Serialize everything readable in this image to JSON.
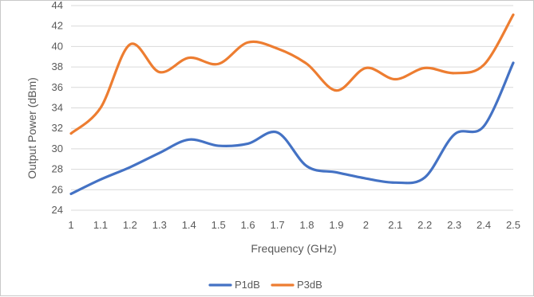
{
  "chart_data": {
    "type": "line",
    "title": "",
    "xlabel": "Frequency (GHz)",
    "ylabel": "Output Power (dBm)",
    "xlim": [
      1,
      2.5
    ],
    "ylim": [
      24,
      44
    ],
    "x_ticks": [
      "1",
      "1.1",
      "1.2",
      "1.3",
      "1.4",
      "1.5",
      "1.6",
      "1.7",
      "1.8",
      "1.9",
      "2",
      "2.1",
      "2.2",
      "2.3",
      "2.4",
      "2.5"
    ],
    "y_ticks": [
      "24",
      "26",
      "28",
      "30",
      "32",
      "34",
      "36",
      "38",
      "40",
      "42",
      "44"
    ],
    "grid": "horizontal",
    "legend_position": "bottom",
    "series": [
      {
        "name": "P1dB",
        "color": "#4472c4",
        "x": [
          1,
          1.1,
          1.2,
          1.3,
          1.4,
          1.5,
          1.6,
          1.7,
          1.8,
          1.9,
          2,
          2.1,
          2.2,
          2.3,
          2.4,
          2.5
        ],
        "values": [
          25.6,
          27.0,
          28.2,
          29.6,
          30.9,
          30.3,
          30.5,
          31.6,
          28.3,
          27.7,
          27.1,
          26.7,
          27.2,
          31.4,
          32.2,
          38.4
        ]
      },
      {
        "name": "P3dB",
        "color": "#ed7d31",
        "x": [
          1,
          1.1,
          1.2,
          1.3,
          1.4,
          1.5,
          1.6,
          1.7,
          1.8,
          1.9,
          2,
          2.1,
          2.2,
          2.3,
          2.4,
          2.5
        ],
        "values": [
          31.5,
          34.0,
          40.2,
          37.5,
          38.9,
          38.3,
          40.4,
          39.8,
          38.3,
          35.7,
          37.9,
          36.8,
          37.9,
          37.4,
          38.2,
          43.1
        ]
      }
    ]
  }
}
